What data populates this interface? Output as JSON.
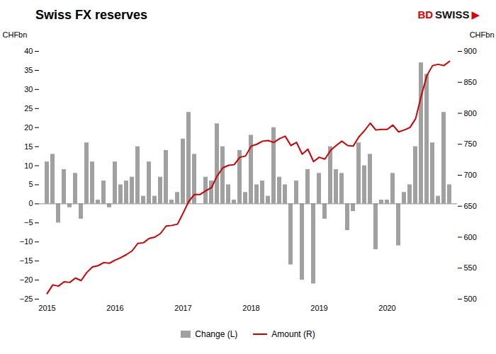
{
  "chart_data": {
    "type": "bar",
    "title": "Swiss FX reserves",
    "ylabel": "CHFbn",
    "y2label": "CHFbn",
    "annotations": [
      {
        "text": "BD",
        "color": "#dd0000"
      },
      {
        "text": "SWISS",
        "color": "#111111"
      },
      {
        "text": "▶",
        "color": "#dd0000"
      }
    ],
    "categories": [
      "2015",
      null,
      null,
      null,
      null,
      null,
      null,
      null,
      null,
      null,
      null,
      null,
      "2016",
      null,
      null,
      null,
      null,
      null,
      null,
      null,
      null,
      null,
      null,
      null,
      "2017",
      null,
      null,
      null,
      null,
      null,
      null,
      null,
      null,
      null,
      null,
      null,
      "2018",
      null,
      null,
      null,
      null,
      null,
      null,
      null,
      null,
      null,
      null,
      null,
      "2019",
      null,
      null,
      null,
      null,
      null,
      null,
      null,
      null,
      null,
      null,
      null,
      "2020",
      null,
      null,
      null,
      null,
      null,
      null,
      null,
      null,
      null,
      null,
      null
    ],
    "series": [
      {
        "name": "Change (L)",
        "type": "bar",
        "color": "#a0a0a0",
        "values": [
          11,
          13,
          -5,
          9,
          -1,
          8,
          -4,
          16,
          11,
          1,
          6,
          -1,
          11,
          5,
          6,
          7,
          15,
          2,
          11,
          2,
          7,
          14,
          1,
          3,
          17,
          24,
          13,
          0,
          7,
          6,
          21,
          15,
          5,
          1,
          14,
          3,
          18,
          5,
          6,
          2,
          20,
          7,
          5,
          -16,
          6,
          -20,
          9,
          -21,
          8,
          -4,
          15,
          9,
          8,
          -7,
          -2,
          16,
          10,
          13,
          -12,
          1,
          1,
          8,
          -11,
          3,
          5,
          15,
          37,
          34,
          16,
          2,
          24,
          5
        ]
      },
      {
        "name": "Amount (R)",
        "type": "line",
        "axis": "y2",
        "color": "#cc0000",
        "values": [
          509,
          523,
          521,
          528,
          527,
          534,
          530,
          543,
          552,
          554,
          559,
          558,
          563,
          567,
          572,
          578,
          590,
          591,
          598,
          600,
          606,
          618,
          619,
          621,
          639,
          658,
          669,
          669,
          675,
          680,
          699,
          712,
          716,
          717,
          729,
          731,
          747,
          750,
          755,
          756,
          753,
          759,
          763,
          748,
          753,
          734,
          742,
          722,
          729,
          726,
          740,
          748,
          755,
          748,
          747,
          762,
          772,
          784,
          773,
          774,
          774,
          781,
          770,
          773,
          777,
          791,
          828,
          861,
          877,
          879,
          877,
          884
        ]
      }
    ],
    "ylim": [
      -25,
      40
    ],
    "yticks": [
      -25,
      -20,
      -15,
      -10,
      -5,
      0,
      5,
      10,
      15,
      20,
      25,
      30,
      35,
      40
    ],
    "y2lim": [
      500,
      900
    ],
    "y2ticks": [
      500,
      550,
      600,
      650,
      700,
      750,
      800,
      850,
      900
    ],
    "grid": false,
    "legend": "bottom"
  }
}
